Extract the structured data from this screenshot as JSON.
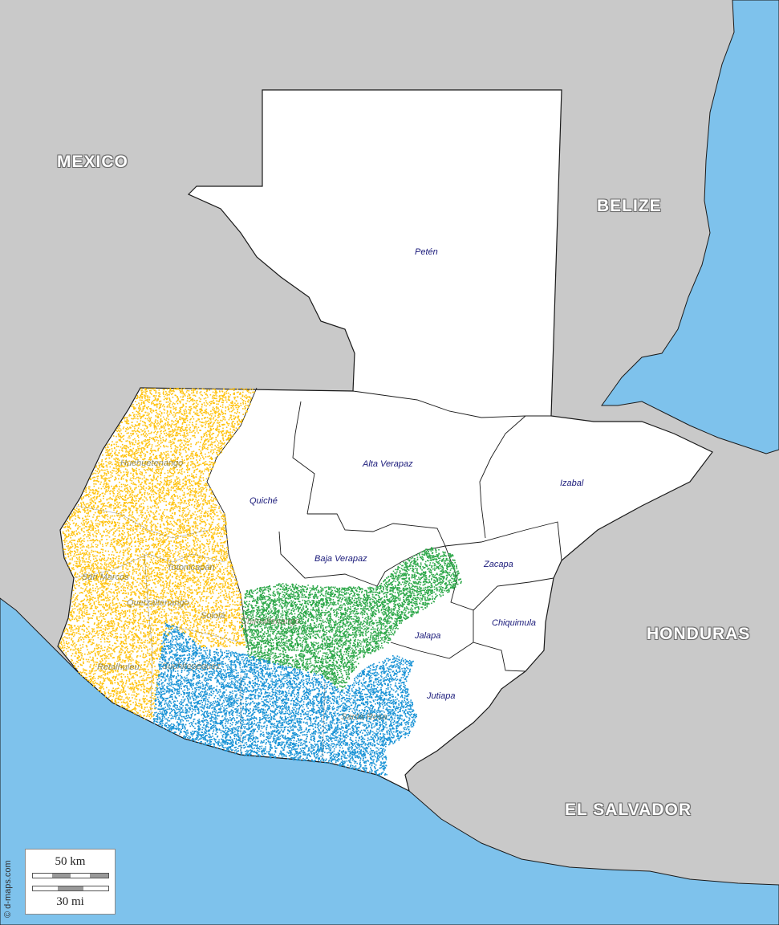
{
  "map": {
    "title": "",
    "colors": {
      "sea": "#7ec2ec",
      "neighbor_land": "#c9c9c9",
      "guatemala_land": "#ffffff",
      "border": "#1a1a1a",
      "region_yellow": "#ffc20e",
      "region_green": "#2ea84a",
      "region_blue": "#1a93d6"
    }
  },
  "countries": {
    "mexico": "MEXICO",
    "belize": "BELIZE",
    "honduras": "HONDURAS",
    "el_salvador": "EL SALVADOR"
  },
  "departments": {
    "peten": "Petén",
    "alta_verapaz": "Alta Verapaz",
    "izabal": "Izabal",
    "quiche": "Quiché",
    "baja_verapaz": "Baja Verapaz",
    "zacapa": "Zacapa",
    "chiquimula": "Chiquimula",
    "jalapa": "Jalapa",
    "jutiapa": "Jutiapa",
    "huehuetenango": "Huehuetenango",
    "san_marcos": "San Marcos",
    "totonicapan": "Totonicapán",
    "quetzaltenango": "Quetzaltenango",
    "solola": "Sololá",
    "retalhuleu": "Retalhuleu",
    "suchitepequez": "Suchitepéquez",
    "chimaltenango": "Chimaltenango",
    "santa_rosa": "Santa Rosa"
  },
  "scale": {
    "km_label": "50 km",
    "mi_label": "30 mi"
  },
  "credit": "© d-maps.com"
}
